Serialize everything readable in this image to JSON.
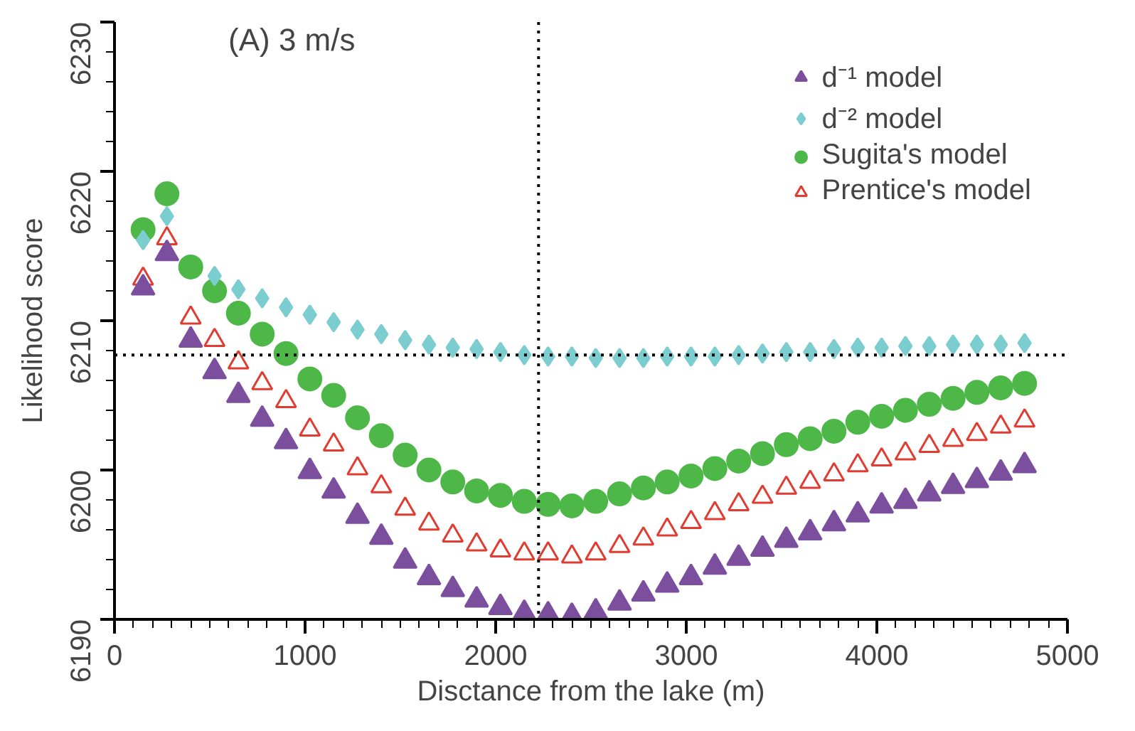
{
  "chart_data": {
    "type": "scatter",
    "xlabel": "Disctance from the lake (m)",
    "ylabel": "Likelihood score",
    "annotations": [
      "(A) 3 m/s"
    ],
    "x": [
      150,
      275,
      400,
      525,
      650,
      775,
      900,
      1025,
      1150,
      1275,
      1400,
      1525,
      1650,
      1775,
      1900,
      2025,
      2150,
      2275,
      2400,
      2525,
      2650,
      2775,
      2900,
      3025,
      3150,
      3275,
      3400,
      3525,
      3650,
      3775,
      3900,
      4025,
      4150,
      4275,
      4400,
      4525,
      4650,
      4775
    ],
    "series": [
      {
        "name": "d⁻¹ model",
        "color": "#7b4f9d",
        "marker": "triangle",
        "values": [
          6212.2,
          6214.5,
          6208.7,
          6206.6,
          6205.0,
          6203.4,
          6201.9,
          6199.9,
          6198.6,
          6196.9,
          6195.5,
          6193.9,
          6192.8,
          6192.0,
          6191.3,
          6190.8,
          6190.4,
          6190.3,
          6190.2,
          6190.5,
          6191.1,
          6191.7,
          6192.3,
          6192.8,
          6193.5,
          6194.1,
          6194.7,
          6195.3,
          6195.8,
          6196.4,
          6197.0,
          6197.6,
          6197.9,
          6198.4,
          6198.9,
          6199.3,
          6199.8,
          6200.3
        ]
      },
      {
        "name": "d⁻² model",
        "color": "#7ccdd0",
        "marker": "diamond",
        "values": [
          6215.4,
          6217.0,
          null,
          6213.0,
          6212.1,
          6211.5,
          6210.9,
          6210.4,
          6209.9,
          6209.4,
          6209.1,
          6208.7,
          6208.4,
          6208.2,
          6208.1,
          6207.9,
          6207.7,
          6207.6,
          6207.6,
          6207.5,
          6207.5,
          6207.5,
          6207.6,
          6207.6,
          6207.6,
          6207.7,
          6207.8,
          6207.9,
          6207.9,
          6208.1,
          6208.2,
          6208.2,
          6208.3,
          6208.3,
          6208.4,
          6208.4,
          6208.4,
          6208.5
        ]
      },
      {
        "name": "Sugita's model",
        "color": "#4db848",
        "marker": "circle",
        "values": [
          6216.1,
          6218.5,
          6213.6,
          6212.0,
          6210.5,
          6209.1,
          6207.8,
          6206.1,
          6205.0,
          6203.5,
          6202.3,
          6201.0,
          6200.0,
          6199.2,
          6198.6,
          6198.3,
          6197.9,
          6197.7,
          6197.6,
          6197.9,
          6198.4,
          6198.8,
          6199.2,
          6199.6,
          6200.1,
          6200.6,
          6201.1,
          6201.7,
          6202.1,
          6202.6,
          6203.2,
          6203.6,
          6204.0,
          6204.4,
          6204.8,
          6205.2,
          6205.5,
          6205.8
        ]
      },
      {
        "name": "Prentice's model",
        "color": "#e03c31",
        "marker": "triangle_open",
        "values": [
          6212.8,
          6215.5,
          6210.2,
          6208.7,
          6207.2,
          6205.8,
          6204.6,
          6202.7,
          6201.7,
          6200.1,
          6198.9,
          6197.4,
          6196.4,
          6195.6,
          6195.0,
          6194.6,
          6194.4,
          6194.4,
          6194.2,
          6194.4,
          6194.9,
          6195.4,
          6196.0,
          6196.5,
          6197.1,
          6197.7,
          6198.2,
          6198.8,
          6199.2,
          6199.7,
          6200.3,
          6200.7,
          6201.1,
          6201.6,
          6202.0,
          6202.4,
          6202.9,
          6203.3
        ]
      }
    ],
    "xlim": [
      0,
      5000
    ],
    "xticks": [
      0,
      1000,
      2000,
      3000,
      4000,
      5000
    ],
    "ylim": [
      6190,
      6230
    ],
    "yticks": [
      6190,
      6200,
      6210,
      6220,
      6230
    ],
    "ref_lines": [
      {
        "axis": "y",
        "value": 6207.7,
        "color": "#000000",
        "line_style": "dotted"
      },
      {
        "axis": "x",
        "value": 2225,
        "color": "#000000",
        "line_style": "dotted"
      }
    ],
    "grid": false,
    "legend": "top right"
  }
}
